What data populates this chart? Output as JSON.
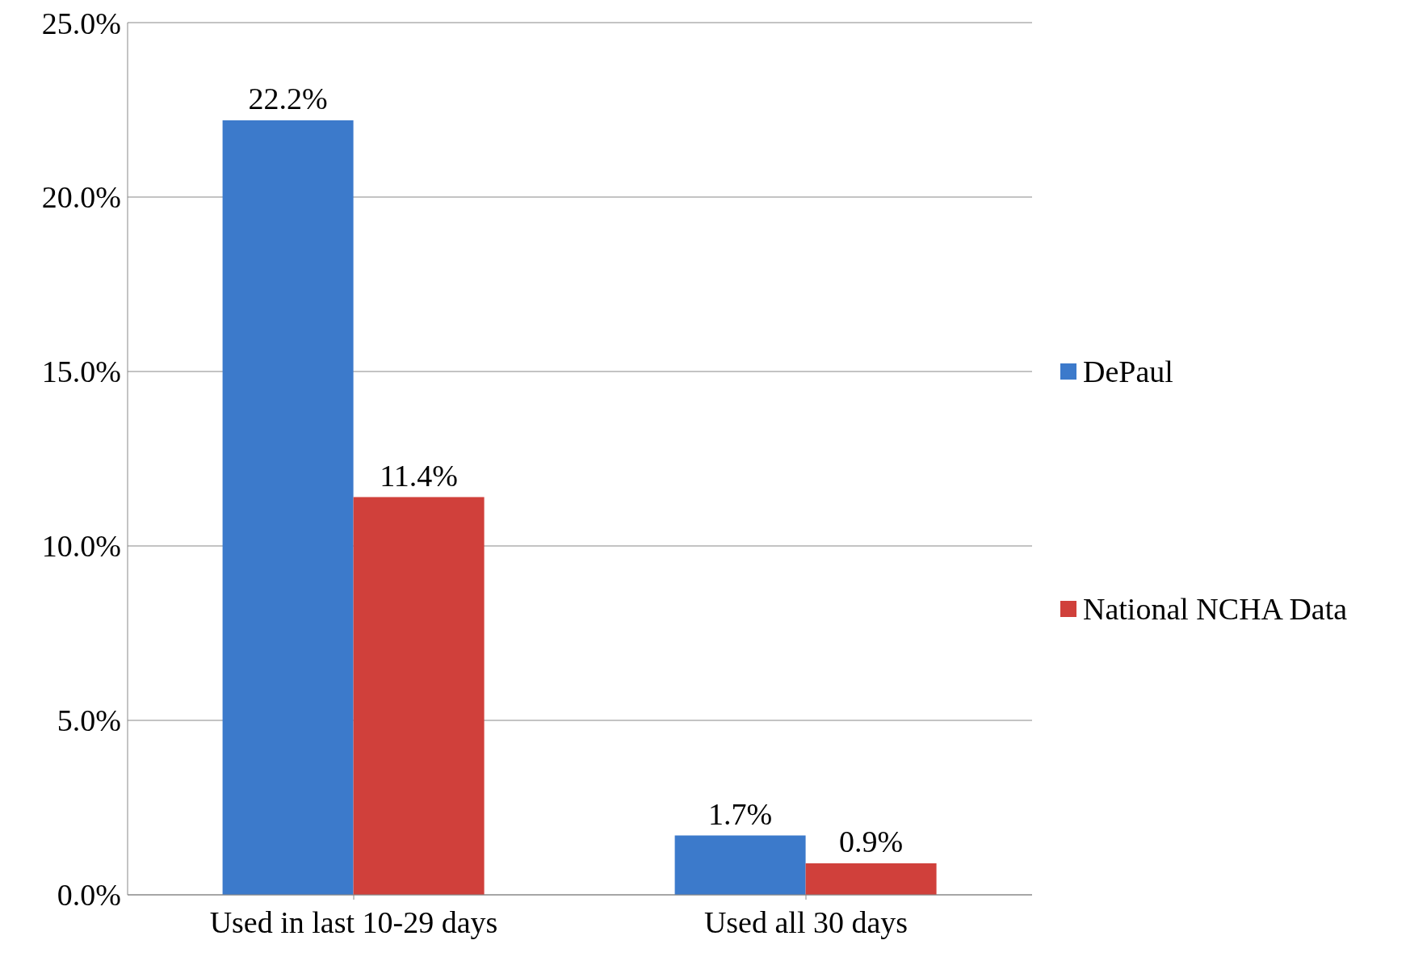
{
  "chart_data": {
    "type": "bar",
    "categories": [
      "Used in last 10-29 days",
      "Used all 30 days"
    ],
    "series": [
      {
        "name": "DePaul",
        "color": "#3c7acb",
        "values": [
          22.2,
          1.7
        ],
        "value_labels": [
          "22.2%",
          "1.7%"
        ]
      },
      {
        "name": "National NCHA Data",
        "color": "#d0403b",
        "values": [
          11.4,
          0.9
        ],
        "value_labels": [
          "11.4%",
          "0.9%"
        ]
      }
    ],
    "ylim": [
      0,
      25
    ],
    "yticks": [
      {
        "value": 0,
        "label": "0.0%"
      },
      {
        "value": 5,
        "label": "5.0%"
      },
      {
        "value": 10,
        "label": "10.0%"
      },
      {
        "value": 15,
        "label": "15.0%"
      },
      {
        "value": 20,
        "label": "20.0%"
      },
      {
        "value": 25,
        "label": "25.0%"
      }
    ],
    "grid": "y",
    "legend": "right"
  }
}
